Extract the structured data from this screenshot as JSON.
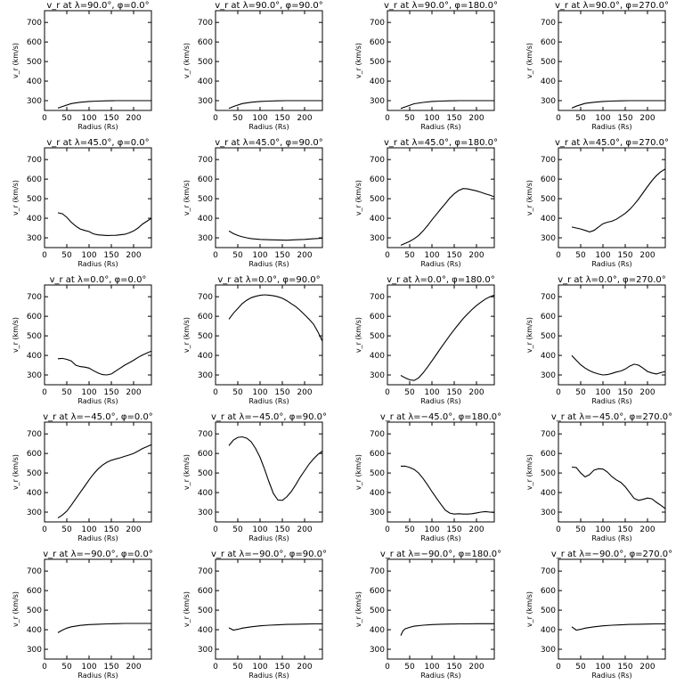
{
  "chart_data": [
    {
      "type": "line",
      "title": "v_r at λ=90.0°, φ=0.0°",
      "xlabel": "Radius (Rs)",
      "ylabel": "v_r (km/s)",
      "xlim": [
        0,
        240
      ],
      "ylim": [
        250,
        760
      ],
      "xticks": [
        0,
        50,
        100,
        150,
        200
      ],
      "yticks": [
        300,
        400,
        500,
        600,
        700
      ],
      "grid": false,
      "x": [
        30,
        40,
        60,
        80,
        100,
        120,
        140,
        160,
        180,
        200,
        220,
        240
      ],
      "y": [
        262,
        270,
        285,
        292,
        296,
        298,
        299,
        300,
        300,
        300,
        300,
        300
      ]
    },
    {
      "type": "line",
      "title": "v_r at λ=90.0°, φ=90.0°",
      "xlabel": "Radius (Rs)",
      "ylabel": "v_r (km/s)",
      "xlim": [
        0,
        240
      ],
      "ylim": [
        250,
        760
      ],
      "xticks": [
        0,
        50,
        100,
        150,
        200
      ],
      "yticks": [
        300,
        400,
        500,
        600,
        700
      ],
      "grid": false,
      "x": [
        30,
        40,
        60,
        80,
        100,
        120,
        140,
        160,
        180,
        200,
        220,
        240
      ],
      "y": [
        260,
        270,
        285,
        292,
        296,
        298,
        299,
        300,
        300,
        300,
        300,
        300
      ]
    },
    {
      "type": "line",
      "title": "v_r at λ=90.0°, φ=180.0°",
      "xlabel": "Radius (Rs)",
      "ylabel": "v_r (km/s)",
      "xlim": [
        0,
        240
      ],
      "ylim": [
        250,
        760
      ],
      "xticks": [
        0,
        50,
        100,
        150,
        200
      ],
      "yticks": [
        300,
        400,
        500,
        600,
        700
      ],
      "grid": false,
      "x": [
        30,
        40,
        60,
        80,
        100,
        120,
        140,
        160,
        180,
        200,
        220,
        240
      ],
      "y": [
        260,
        268,
        284,
        291,
        296,
        298,
        299,
        300,
        300,
        300,
        300,
        300
      ]
    },
    {
      "type": "line",
      "title": "v_r at λ=90.0°, φ=270.0°",
      "xlabel": "Radius (Rs)",
      "ylabel": "v_r (km/s)",
      "xlim": [
        0,
        240
      ],
      "ylim": [
        250,
        760
      ],
      "xticks": [
        0,
        50,
        100,
        150,
        200
      ],
      "yticks": [
        300,
        400,
        500,
        600,
        700
      ],
      "grid": false,
      "x": [
        30,
        40,
        60,
        80,
        100,
        120,
        140,
        160,
        180,
        200,
        220,
        240
      ],
      "y": [
        262,
        272,
        286,
        292,
        296,
        298,
        299,
        300,
        300,
        300,
        300,
        300
      ]
    },
    {
      "type": "line",
      "title": "v_r at λ=45.0°, φ=0.0°",
      "xlabel": "Radius (Rs)",
      "ylabel": "v_r (km/s)",
      "xlim": [
        0,
        240
      ],
      "ylim": [
        250,
        760
      ],
      "xticks": [
        0,
        50,
        100,
        150,
        200
      ],
      "yticks": [
        300,
        400,
        500,
        600,
        700
      ],
      "grid": false,
      "x": [
        30,
        40,
        50,
        60,
        70,
        80,
        90,
        100,
        110,
        120,
        140,
        160,
        180,
        190,
        200,
        210,
        220,
        230,
        240
      ],
      "y": [
        428,
        423,
        405,
        380,
        360,
        345,
        338,
        332,
        320,
        315,
        312,
        313,
        318,
        325,
        335,
        350,
        370,
        385,
        400
      ]
    },
    {
      "type": "line",
      "title": "v_r at λ=45.0°, φ=90.0°",
      "xlabel": "Radius (Rs)",
      "ylabel": "v_r (km/s)",
      "xlim": [
        0,
        240
      ],
      "ylim": [
        250,
        760
      ],
      "xticks": [
        0,
        50,
        100,
        150,
        200
      ],
      "yticks": [
        300,
        400,
        500,
        600,
        700
      ],
      "grid": false,
      "x": [
        30,
        40,
        50,
        60,
        70,
        80,
        100,
        120,
        140,
        160,
        180,
        200,
        220,
        240
      ],
      "y": [
        335,
        322,
        312,
        305,
        300,
        296,
        292,
        290,
        289,
        288,
        290,
        292,
        295,
        298
      ]
    },
    {
      "type": "line",
      "title": "v_r at λ=45.0°, φ=180.0°",
      "xlabel": "Radius (Rs)",
      "ylabel": "v_r (km/s)",
      "xlim": [
        0,
        240
      ],
      "ylim": [
        250,
        760
      ],
      "xticks": [
        0,
        50,
        100,
        150,
        200
      ],
      "yticks": [
        300,
        400,
        500,
        600,
        700
      ],
      "grid": false,
      "x": [
        30,
        40,
        50,
        60,
        70,
        80,
        90,
        100,
        110,
        120,
        130,
        140,
        150,
        160,
        170,
        180,
        190,
        200,
        210,
        220,
        230,
        240
      ],
      "y": [
        262,
        272,
        282,
        295,
        312,
        335,
        362,
        392,
        420,
        448,
        475,
        503,
        525,
        542,
        552,
        550,
        545,
        540,
        533,
        525,
        518,
        510
      ]
    },
    {
      "type": "line",
      "title": "v_r at λ=45.0°, φ=270.0°",
      "xlabel": "Radius (Rs)",
      "ylabel": "v_r (km/s)",
      "xlim": [
        0,
        240
      ],
      "ylim": [
        250,
        760
      ],
      "xticks": [
        0,
        50,
        100,
        150,
        200
      ],
      "yticks": [
        300,
        400,
        500,
        600,
        700
      ],
      "grid": false,
      "x": [
        30,
        40,
        50,
        60,
        70,
        80,
        90,
        100,
        110,
        120,
        130,
        140,
        150,
        160,
        170,
        180,
        190,
        200,
        210,
        220,
        230,
        240
      ],
      "y": [
        355,
        350,
        345,
        338,
        330,
        338,
        355,
        372,
        380,
        385,
        395,
        410,
        425,
        445,
        470,
        498,
        530,
        562,
        592,
        618,
        638,
        652
      ]
    },
    {
      "type": "line",
      "title": "v_r at λ=0.0°, φ=0.0°",
      "xlabel": "Radius (Rs)",
      "ylabel": "v_r (km/s)",
      "xlim": [
        0,
        240
      ],
      "ylim": [
        250,
        760
      ],
      "xticks": [
        0,
        50,
        100,
        150,
        200
      ],
      "yticks": [
        300,
        400,
        500,
        600,
        700
      ],
      "grid": false,
      "x": [
        30,
        40,
        50,
        60,
        70,
        80,
        90,
        100,
        110,
        120,
        130,
        140,
        150,
        160,
        170,
        180,
        190,
        200,
        210,
        220,
        230,
        240
      ],
      "y": [
        383,
        385,
        380,
        372,
        350,
        343,
        340,
        335,
        322,
        310,
        302,
        300,
        305,
        320,
        335,
        350,
        362,
        375,
        390,
        402,
        412,
        422
      ]
    },
    {
      "type": "line",
      "title": "v_r at λ=0.0°, φ=90.0°",
      "xlabel": "Radius (Rs)",
      "ylabel": "v_r (km/s)",
      "xlim": [
        0,
        240
      ],
      "ylim": [
        250,
        760
      ],
      "xticks": [
        0,
        50,
        100,
        150,
        200
      ],
      "yticks": [
        300,
        400,
        500,
        600,
        700
      ],
      "grid": false,
      "x": [
        30,
        40,
        50,
        60,
        70,
        80,
        90,
        100,
        110,
        120,
        130,
        140,
        150,
        160,
        170,
        180,
        190,
        200,
        210,
        220,
        230,
        240
      ],
      "y": [
        585,
        615,
        640,
        665,
        682,
        695,
        702,
        707,
        710,
        708,
        705,
        700,
        692,
        680,
        665,
        650,
        630,
        608,
        585,
        560,
        520,
        472
      ]
    },
    {
      "type": "line",
      "title": "v_r at λ=0.0°, φ=180.0°",
      "xlabel": "Radius (Rs)",
      "ylabel": "v_r (km/s)",
      "xlim": [
        0,
        240
      ],
      "ylim": [
        250,
        760
      ],
      "xticks": [
        0,
        50,
        100,
        150,
        200
      ],
      "yticks": [
        300,
        400,
        500,
        600,
        700
      ],
      "grid": false,
      "x": [
        30,
        40,
        50,
        60,
        70,
        80,
        90,
        100,
        110,
        120,
        130,
        140,
        150,
        160,
        170,
        180,
        190,
        200,
        210,
        220,
        230,
        240
      ],
      "y": [
        298,
        285,
        275,
        272,
        285,
        310,
        340,
        372,
        405,
        438,
        470,
        502,
        532,
        560,
        588,
        612,
        635,
        655,
        672,
        688,
        700,
        708
      ]
    },
    {
      "type": "line",
      "title": "v_r at λ=0.0°, φ=270.0°",
      "xlabel": "Radius (Rs)",
      "ylabel": "v_r (km/s)",
      "xlim": [
        0,
        240
      ],
      "ylim": [
        250,
        760
      ],
      "xticks": [
        0,
        50,
        100,
        150,
        200
      ],
      "yticks": [
        300,
        400,
        500,
        600,
        700
      ],
      "grid": false,
      "x": [
        30,
        40,
        50,
        60,
        70,
        80,
        90,
        100,
        110,
        120,
        130,
        140,
        150,
        160,
        170,
        180,
        190,
        200,
        210,
        220,
        230,
        240
      ],
      "y": [
        400,
        375,
        352,
        335,
        322,
        312,
        305,
        300,
        302,
        308,
        315,
        320,
        330,
        345,
        355,
        350,
        335,
        318,
        310,
        305,
        312,
        318
      ]
    },
    {
      "type": "line",
      "title": "v_r at λ=−45.0°, φ=0.0°",
      "xlabel": "Radius (Rs)",
      "ylabel": "v_r (km/s)",
      "xlim": [
        0,
        240
      ],
      "ylim": [
        250,
        760
      ],
      "xticks": [
        0,
        50,
        100,
        150,
        200
      ],
      "yticks": [
        300,
        400,
        500,
        600,
        700
      ],
      "grid": false,
      "x": [
        30,
        40,
        50,
        60,
        70,
        80,
        90,
        100,
        110,
        120,
        130,
        140,
        150,
        160,
        170,
        180,
        190,
        200,
        210,
        220,
        230,
        240
      ],
      "y": [
        270,
        285,
        305,
        335,
        368,
        400,
        432,
        465,
        495,
        520,
        540,
        555,
        565,
        572,
        578,
        585,
        592,
        600,
        612,
        625,
        635,
        645
      ]
    },
    {
      "type": "line",
      "title": "v_r at λ=−45.0°, φ=90.0°",
      "xlabel": "Radius (Rs)",
      "ylabel": "v_r (km/s)",
      "xlim": [
        0,
        240
      ],
      "ylim": [
        250,
        760
      ],
      "xticks": [
        0,
        50,
        100,
        150,
        200
      ],
      "yticks": [
        300,
        400,
        500,
        600,
        700
      ],
      "grid": false,
      "x": [
        30,
        40,
        50,
        60,
        70,
        80,
        90,
        100,
        110,
        120,
        130,
        140,
        150,
        160,
        170,
        180,
        190,
        200,
        210,
        220,
        230,
        240
      ],
      "y": [
        640,
        668,
        682,
        685,
        678,
        660,
        625,
        580,
        520,
        455,
        395,
        362,
        360,
        378,
        405,
        440,
        478,
        512,
        545,
        572,
        595,
        612
      ]
    },
    {
      "type": "line",
      "title": "v_r at λ=−45.0°, φ=180.0°",
      "xlabel": "Radius (Rs)",
      "ylabel": "v_r (km/s)",
      "xlim": [
        0,
        240
      ],
      "ylim": [
        250,
        760
      ],
      "xticks": [
        0,
        50,
        100,
        150,
        200
      ],
      "yticks": [
        300,
        400,
        500,
        600,
        700
      ],
      "grid": false,
      "x": [
        30,
        40,
        50,
        60,
        70,
        80,
        90,
        100,
        110,
        120,
        130,
        140,
        150,
        160,
        170,
        180,
        190,
        200,
        210,
        220,
        230,
        240
      ],
      "y": [
        535,
        535,
        528,
        518,
        500,
        472,
        440,
        405,
        372,
        340,
        310,
        295,
        290,
        292,
        290,
        290,
        292,
        296,
        300,
        303,
        300,
        298
      ]
    },
    {
      "type": "line",
      "title": "v_r at λ=−45.0°, φ=270.0°",
      "xlabel": "Radius (Rs)",
      "ylabel": "v_r (km/s)",
      "xlim": [
        0,
        240
      ],
      "ylim": [
        250,
        760
      ],
      "xticks": [
        0,
        50,
        100,
        150,
        200
      ],
      "yticks": [
        300,
        400,
        500,
        600,
        700
      ],
      "grid": false,
      "x": [
        30,
        40,
        50,
        60,
        70,
        80,
        90,
        100,
        110,
        120,
        130,
        140,
        150,
        160,
        170,
        180,
        190,
        200,
        210,
        220,
        230,
        240
      ],
      "y": [
        530,
        528,
        500,
        480,
        492,
        515,
        522,
        520,
        505,
        482,
        465,
        452,
        430,
        400,
        370,
        360,
        365,
        372,
        368,
        350,
        335,
        318
      ]
    },
    {
      "type": "line",
      "title": "v_r at λ=−90.0°, φ=0.0°",
      "xlabel": "Radius (Rs)",
      "ylabel": "v_r (km/s)",
      "xlim": [
        0,
        240
      ],
      "ylim": [
        250,
        760
      ],
      "xticks": [
        0,
        50,
        100,
        150,
        200
      ],
      "yticks": [
        300,
        400,
        500,
        600,
        700
      ],
      "grid": false,
      "x": [
        30,
        40,
        50,
        60,
        80,
        100,
        120,
        140,
        160,
        180,
        200,
        220,
        240
      ],
      "y": [
        385,
        398,
        408,
        415,
        422,
        426,
        428,
        430,
        431,
        432,
        432,
        432,
        432
      ]
    },
    {
      "type": "line",
      "title": "v_r at λ=−90.0°, φ=90.0°",
      "xlabel": "Radius (Rs)",
      "ylabel": "v_r (km/s)",
      "xlim": [
        0,
        240
      ],
      "ylim": [
        250,
        760
      ],
      "xticks": [
        0,
        50,
        100,
        150,
        200
      ],
      "yticks": [
        300,
        400,
        500,
        600,
        700
      ],
      "grid": false,
      "x": [
        30,
        40,
        50,
        60,
        80,
        100,
        120,
        140,
        160,
        180,
        200,
        220,
        240
      ],
      "y": [
        410,
        398,
        402,
        408,
        415,
        420,
        423,
        425,
        427,
        428,
        429,
        430,
        430
      ]
    },
    {
      "type": "line",
      "title": "v_r at λ=−90.0°, φ=180.0°",
      "xlabel": "Radius (Rs)",
      "ylabel": "v_r (km/s)",
      "xlim": [
        0,
        240
      ],
      "ylim": [
        250,
        760
      ],
      "xticks": [
        0,
        50,
        100,
        150,
        200
      ],
      "yticks": [
        300,
        400,
        500,
        600,
        700
      ],
      "grid": false,
      "x": [
        30,
        35,
        40,
        50,
        60,
        80,
        100,
        120,
        140,
        160,
        180,
        200,
        220,
        240
      ],
      "y": [
        370,
        395,
        405,
        412,
        418,
        423,
        426,
        428,
        429,
        430,
        430,
        431,
        431,
        431
      ]
    },
    {
      "type": "line",
      "title": "v_r at λ=−90.0°, φ=270.0°",
      "xlabel": "Radius (Rs)",
      "ylabel": "v_r (km/s)",
      "xlim": [
        0,
        240
      ],
      "ylim": [
        250,
        760
      ],
      "xticks": [
        0,
        50,
        100,
        150,
        200
      ],
      "yticks": [
        300,
        400,
        500,
        600,
        700
      ],
      "grid": false,
      "x": [
        30,
        40,
        50,
        60,
        80,
        100,
        120,
        140,
        160,
        180,
        200,
        220,
        240
      ],
      "y": [
        415,
        398,
        402,
        408,
        415,
        420,
        423,
        425,
        427,
        428,
        429,
        430,
        430
      ]
    }
  ]
}
